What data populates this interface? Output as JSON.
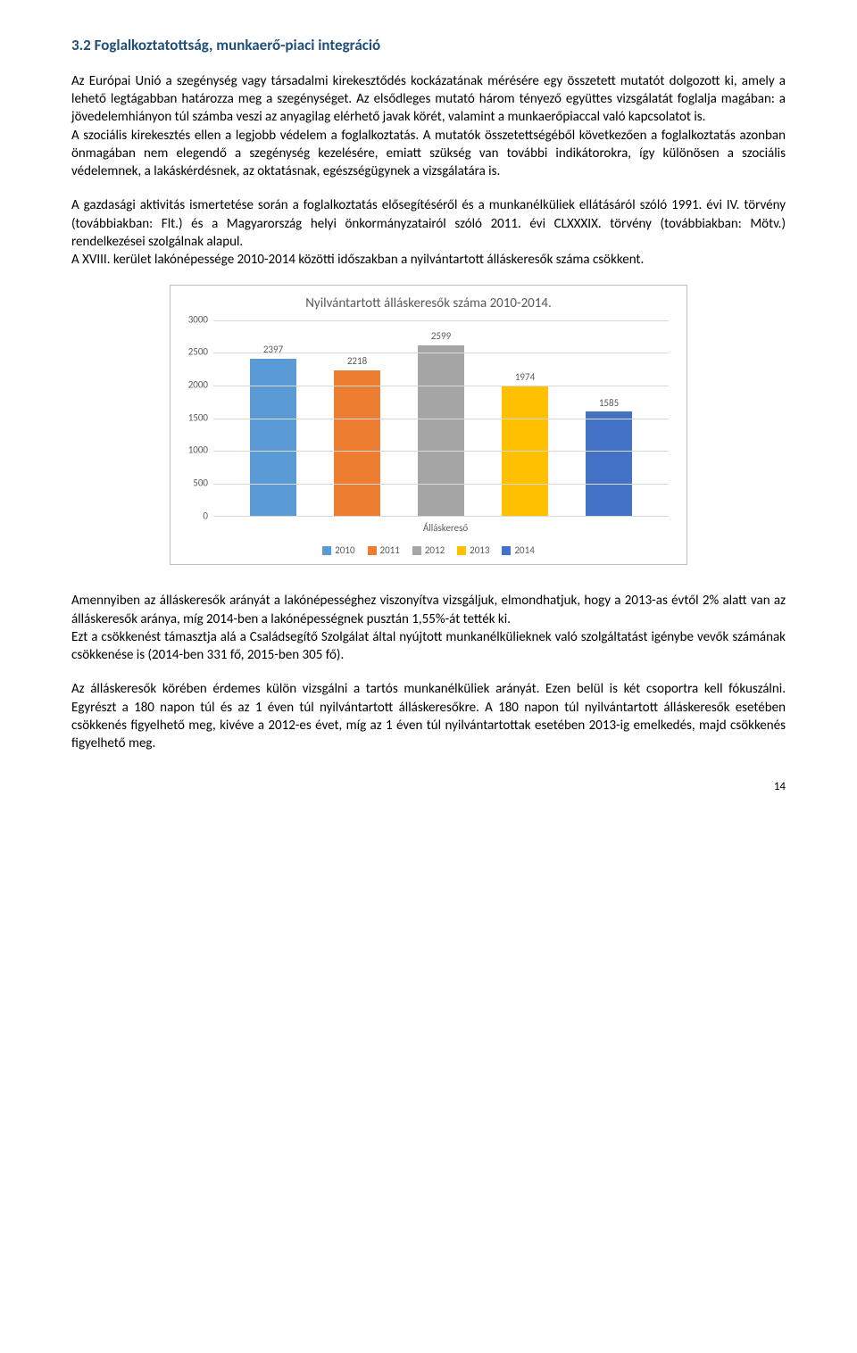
{
  "heading": "3.2 Foglalkoztatottság, munkaerő-piaci integráció",
  "para1": "Az Európai Unió a szegénység vagy társadalmi kirekesztődés kockázatának mérésére egy összetett mutatót dolgozott ki, amely a lehető legtágabban határozza meg a szegénységet. Az elsődleges mutató három tényező együttes vizsgálatát foglalja magában: a jövedelemhiányon túl számba veszi az anyagilag elérhető javak körét, valamint a munkaerőpiaccal való kapcsolatot is.",
  "para2": "A szociális kirekesztés ellen a legjobb védelem a foglalkoztatás. A mutatók összetettségéből következően a foglalkoztatás azonban önmagában nem elegendő a szegénység kezelésére, emiatt szükség van további indikátorokra, így különösen a szociális védelemnek, a lakáskérdésnek, az oktatásnak, egészségügynek a vizsgálatára is.",
  "para3": "A gazdasági aktivitás ismertetése során a foglalkoztatás elősegítéséről és a munkanélküliek ellátásáról szóló 1991. évi IV. törvény (továbbiakban: Flt.) és a Magyarország helyi önkormányzatairól szóló 2011. évi CLXXXIX. törvény (továbbiakban: Mötv.) rendelkezései szolgálnak alapul.",
  "para4": "A XVIII. kerület lakónépessége 2010-2014 közötti időszakban a nyilvántartott álláskeresők száma csökkent.",
  "para5": "Amennyiben az álláskeresők arányát a lakónépességhez viszonyítva vizsgáljuk, elmondhatjuk, hogy a 2013-as évtől 2% alatt van az álláskeresők aránya, míg 2014-ben a lakónépességnek pusztán 1,55%-át tették ki.",
  "para6": "Ezt a csökkenést támasztja alá a Családsegítő Szolgálat által nyújtott munkanélkülieknek való szolgáltatást igénybe vevők számának csökkenése is (2014-ben 331 fő, 2015-ben 305 fő).",
  "para7": "Az álláskeresők körében érdemes külön vizsgálni a tartós munkanélküliek arányát. Ezen belül is két csoportra kell fókuszálni. Egyrészt a 180 napon túl és az 1 éven túl nyilvántartott álláskeresőkre. A 180 napon túl nyilvántartott álláskeresők esetében csökkenés figyelhető meg, kivéve a 2012-es évet, míg az 1 éven túl nyilvántartottak esetében 2013-ig emelkedés, majd csökkenés figyelhető meg.",
  "page_number": "14",
  "chart": {
    "type": "bar",
    "title": "Nyilvántartott álláskeresők száma 2010-2014.",
    "x_axis_label": "Álláskereső",
    "ylim_max": 3000,
    "ytick_step": 500,
    "yticks": [
      "0",
      "500",
      "1000",
      "1500",
      "2000",
      "2500",
      "3000"
    ],
    "background_color": "#ffffff",
    "grid_color": "#d9d9d9",
    "border_color": "#bfbfbf",
    "bars": [
      {
        "label": "2397",
        "value": 2397,
        "color": "#5b9bd5",
        "legend": "2010"
      },
      {
        "label": "2218",
        "value": 2218,
        "color": "#ed7d31",
        "legend": "2011"
      },
      {
        "label": "2599",
        "value": 2599,
        "color": "#a5a5a5",
        "legend": "2012"
      },
      {
        "label": "1974",
        "value": 1974,
        "color": "#ffc000",
        "legend": "2013"
      },
      {
        "label": "1585",
        "value": 1585,
        "color": "#4472c4",
        "legend": "2014"
      }
    ]
  }
}
